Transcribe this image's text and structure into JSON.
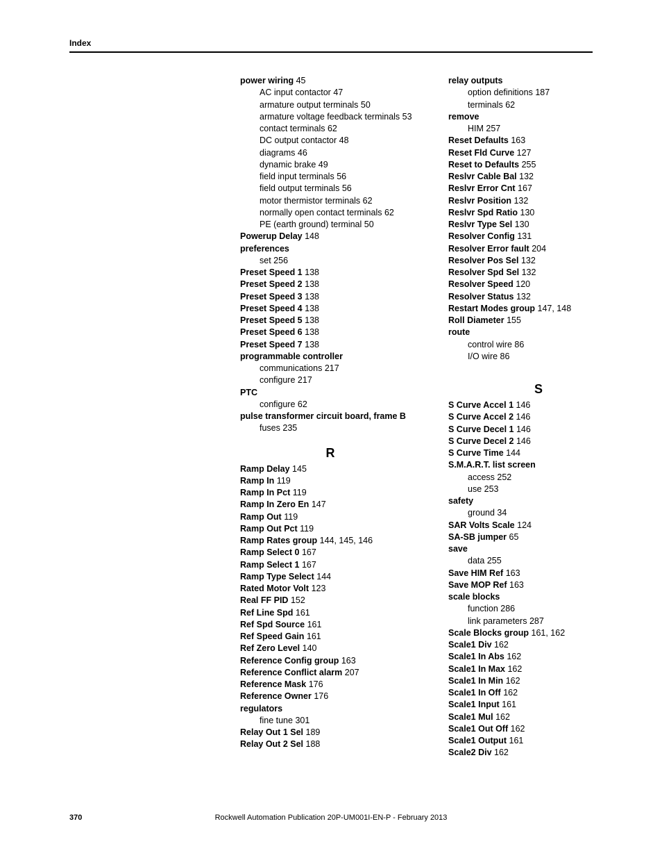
{
  "header": {
    "label": "Index"
  },
  "footer": {
    "page": "370",
    "publication": "Rockwell Automation Publication 20P-UM001I-EN-P - February 2013"
  },
  "col1": {
    "power_wiring": {
      "term": "power wiring",
      "page": "45"
    },
    "power_wiring_subs": [
      {
        "text": "AC input contactor",
        "page": "47"
      },
      {
        "text": "armature output terminals",
        "page": "50"
      },
      {
        "text": "armature voltage feedback terminals",
        "page": "53"
      },
      {
        "text": "contact terminals",
        "page": "62"
      },
      {
        "text": "DC output contactor",
        "page": "48"
      },
      {
        "text": "diagrams",
        "page": "46"
      },
      {
        "text": "dynamic brake",
        "page": "49"
      },
      {
        "text": "field input terminals",
        "page": "56"
      },
      {
        "text": "field output terminals",
        "page": "56"
      },
      {
        "text": "motor thermistor terminals",
        "page": "62"
      },
      {
        "text": "normally open contact terminals",
        "page": "62"
      },
      {
        "text": "PE (earth ground) terminal",
        "page": "50"
      }
    ],
    "powerup_delay": {
      "term": "Powerup Delay",
      "page": "148"
    },
    "preferences": {
      "term": "preferences"
    },
    "preferences_subs": [
      {
        "text": "set",
        "page": "256"
      }
    ],
    "preset_speed_1": {
      "term": "Preset Speed 1",
      "page": "138"
    },
    "preset_speed_2": {
      "term": "Preset Speed 2",
      "page": "138"
    },
    "preset_speed_3": {
      "term": "Preset Speed 3",
      "page": "138"
    },
    "preset_speed_4": {
      "term": "Preset Speed 4",
      "page": "138"
    },
    "preset_speed_5": {
      "term": "Preset Speed 5",
      "page": "138"
    },
    "preset_speed_6": {
      "term": "Preset Speed 6",
      "page": "138"
    },
    "preset_speed_7": {
      "term": "Preset Speed 7",
      "page": "138"
    },
    "programmable_controller": {
      "term": "programmable controller"
    },
    "programmable_controller_subs": [
      {
        "text": "communications",
        "page": "217"
      },
      {
        "text": "configure",
        "page": "217"
      }
    ],
    "ptc": {
      "term": "PTC"
    },
    "ptc_subs": [
      {
        "text": "configure",
        "page": "62"
      }
    ],
    "pulse_transformer": {
      "term": "pulse transformer circuit board, frame B"
    },
    "pulse_transformer_subs": [
      {
        "text": "fuses",
        "page": "235"
      }
    ],
    "section_R": "R",
    "ramp_delay": {
      "term": "Ramp Delay",
      "page": "145"
    },
    "ramp_in": {
      "term": "Ramp In",
      "page": "119"
    },
    "ramp_in_pct": {
      "term": "Ramp In Pct",
      "page": "119"
    },
    "ramp_in_zero_en": {
      "term": "Ramp In Zero En",
      "page": "147"
    },
    "ramp_out": {
      "term": "Ramp Out",
      "page": "119"
    },
    "ramp_out_pct": {
      "term": "Ramp Out Pct",
      "page": "119"
    },
    "ramp_rates_group": {
      "term": "Ramp Rates group",
      "page": "144, 145, 146"
    },
    "ramp_select_0": {
      "term": "Ramp Select 0",
      "page": "167"
    },
    "ramp_select_1": {
      "term": "Ramp Select 1",
      "page": "167"
    },
    "ramp_type_select": {
      "term": "Ramp Type Select",
      "page": "144"
    },
    "rated_motor_volt": {
      "term": "Rated Motor Volt",
      "page": "123"
    },
    "real_ff_pid": {
      "term": "Real FF PID",
      "page": "152"
    },
    "ref_line_spd": {
      "term": "Ref Line Spd",
      "page": "161"
    },
    "ref_spd_source": {
      "term": "Ref Spd Source",
      "page": "161"
    },
    "ref_speed_gain": {
      "term": "Ref Speed Gain",
      "page": "161"
    },
    "ref_zero_level": {
      "term": "Ref Zero Level",
      "page": "140"
    },
    "reference_config_group": {
      "term": "Reference Config group",
      "page": "163"
    },
    "reference_conflict_alarm": {
      "term": "Reference Conflict alarm",
      "page": "207"
    },
    "reference_mask": {
      "term": "Reference Mask",
      "page": "176"
    },
    "reference_owner": {
      "term": "Reference Owner",
      "page": "176"
    },
    "regulators": {
      "term": "regulators"
    },
    "regulators_subs": [
      {
        "text": "fine tune",
        "page": "301"
      }
    ],
    "relay_out_1_sel": {
      "term": "Relay Out 1 Sel",
      "page": "189"
    },
    "relay_out_2_sel": {
      "term": "Relay Out 2 Sel",
      "page": "188"
    }
  },
  "col2": {
    "relay_outputs": {
      "term": "relay outputs"
    },
    "relay_outputs_subs": [
      {
        "text": "option definitions",
        "page": "187"
      },
      {
        "text": "terminals",
        "page": "62"
      }
    ],
    "remove": {
      "term": "remove"
    },
    "remove_subs": [
      {
        "text": "HIM",
        "page": "257"
      }
    ],
    "reset_defaults": {
      "term": "Reset Defaults",
      "page": "163"
    },
    "reset_fld_curve": {
      "term": "Reset Fld Curve",
      "page": "127"
    },
    "reset_to_defaults": {
      "term": "Reset to Defaults",
      "page": "255"
    },
    "reslvr_cable_bal": {
      "term": "Reslvr Cable Bal",
      "page": "132"
    },
    "reslvr_error_cnt": {
      "term": "Reslvr Error Cnt",
      "page": "167"
    },
    "reslvr_position": {
      "term": "Reslvr Position",
      "page": "132"
    },
    "reslvr_spd_ratio": {
      "term": "Reslvr Spd Ratio",
      "page": "130"
    },
    "reslvr_type_sel": {
      "term": "Reslvr Type Sel",
      "page": "130"
    },
    "resolver_config": {
      "term": "Resolver Config",
      "page": "131"
    },
    "resolver_error_fault": {
      "term": "Resolver Error fault",
      "page": "204"
    },
    "resolver_pos_sel": {
      "term": "Resolver Pos Sel",
      "page": "132"
    },
    "resolver_spd_sel": {
      "term": "Resolver Spd Sel",
      "page": "132"
    },
    "resolver_speed": {
      "term": "Resolver Speed",
      "page": "120"
    },
    "resolver_status": {
      "term": "Resolver Status",
      "page": "132"
    },
    "restart_modes_group": {
      "term": "Restart Modes group",
      "page": "147, 148"
    },
    "roll_diameter": {
      "term": "Roll Diameter",
      "page": "155"
    },
    "route": {
      "term": "route"
    },
    "route_subs": [
      {
        "text": "control wire",
        "page": "86"
      },
      {
        "text": "I/O wire",
        "page": "86"
      }
    ],
    "section_S": "S",
    "s_curve_accel_1": {
      "term": "S Curve Accel 1",
      "page": "146"
    },
    "s_curve_accel_2": {
      "term": "S Curve Accel 2",
      "page": "146"
    },
    "s_curve_decel_1": {
      "term": "S Curve Decel 1",
      "page": "146"
    },
    "s_curve_decel_2": {
      "term": "S Curve Decel 2",
      "page": "146"
    },
    "s_curve_time": {
      "term": "S Curve Time",
      "page": "144"
    },
    "smart_list_screen": {
      "term": "S.M.A.R.T. list screen"
    },
    "smart_list_screen_subs": [
      {
        "text": "access",
        "page": "252"
      },
      {
        "text": "use",
        "page": "253"
      }
    ],
    "safety": {
      "term": "safety"
    },
    "safety_subs": [
      {
        "text": "ground",
        "page": "34"
      }
    ],
    "sar_volts_scale": {
      "term": "SAR Volts Scale",
      "page": "124"
    },
    "sa_sb_jumper": {
      "term": "SA-SB jumper",
      "page": "65"
    },
    "save": {
      "term": "save"
    },
    "save_subs": [
      {
        "text": "data",
        "page": "255"
      }
    ],
    "save_him_ref": {
      "term": "Save HIM Ref",
      "page": "163"
    },
    "save_mop_ref": {
      "term": "Save MOP Ref",
      "page": "163"
    },
    "scale_blocks": {
      "term": "scale blocks"
    },
    "scale_blocks_subs": [
      {
        "text": "function",
        "page": "286"
      },
      {
        "text": "link parameters",
        "page": "287"
      }
    ],
    "scale_blocks_group": {
      "term": "Scale Blocks group",
      "page": "161, 162"
    },
    "scale1_div": {
      "term": "Scale1 Div",
      "page": "162"
    },
    "scale1_in_abs": {
      "term": "Scale1 In Abs",
      "page": "162"
    },
    "scale1_in_max": {
      "term": "Scale1 In Max",
      "page": "162"
    },
    "scale1_in_min": {
      "term": "Scale1 In Min",
      "page": "162"
    },
    "scale1_in_off": {
      "term": "Scale1 In Off",
      "page": "162"
    },
    "scale1_input": {
      "term": "Scale1 Input",
      "page": "161"
    },
    "scale1_mul": {
      "term": "Scale1 Mul",
      "page": "162"
    },
    "scale1_out_off": {
      "term": "Scale1 Out Off",
      "page": "162"
    },
    "scale1_output": {
      "term": "Scale1 Output",
      "page": "161"
    },
    "scale2_div": {
      "term": "Scale2 Div",
      "page": "162"
    }
  }
}
